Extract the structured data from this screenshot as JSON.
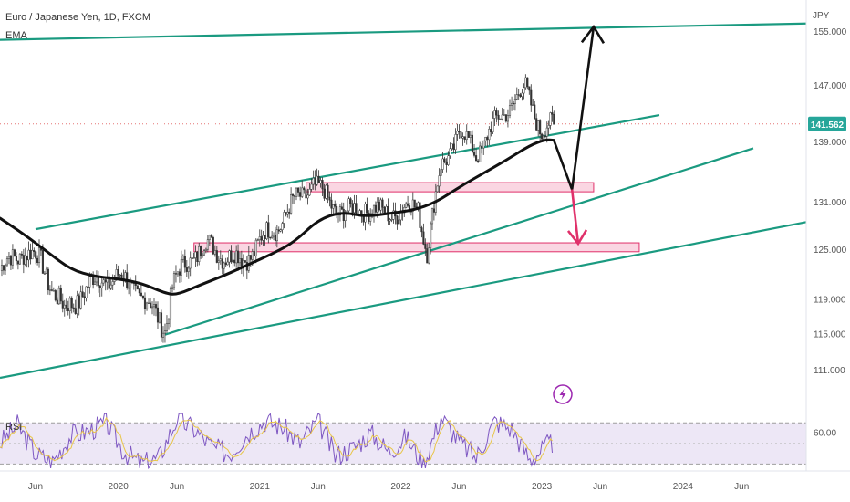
{
  "header": {
    "title": "Euro / Japanese Yen, 1D, FXCM",
    "indicator": "EMA",
    "currency": "JPY"
  },
  "rsi_panel": {
    "label": "RSI",
    "level_label": "60.00",
    "level_value": 60
  },
  "current_price": {
    "value": 141.562,
    "label": "141.562",
    "color": "#26a69a"
  },
  "colors": {
    "trendline": "#1a9a80",
    "ema": "#111111",
    "zone_fill": "#f8c8d8",
    "zone_stroke": "#e0306a",
    "arrow_up": "#111111",
    "arrow_down": "#e0306a",
    "candle": "#333333",
    "rsi_line": "#7e57c2",
    "rsi_ma": "#e8c547",
    "rsi_band": "#ede7f6",
    "price_line": "#e57373",
    "flash_icon": "#9c27b0"
  },
  "icons": {
    "flash": "lightning-bolt-icon"
  },
  "chart_data": {
    "type": "line",
    "title": "Euro / Japanese Yen, 1D, FXCM",
    "xlabel": "",
    "ylabel": "JPY",
    "y_scale": "log",
    "ylim": [
      108,
      158
    ],
    "xlim": [
      "2019-03-01",
      "2024-11-15"
    ],
    "grid": false,
    "y_ticks": [
      {
        "value": 111,
        "label": "111.000"
      },
      {
        "value": 115,
        "label": "115.000"
      },
      {
        "value": 119,
        "label": "119.000"
      },
      {
        "value": 125,
        "label": "125.000"
      },
      {
        "value": 131,
        "label": "131.000"
      },
      {
        "value": 139,
        "label": "139.000"
      },
      {
        "value": 147,
        "label": "147.000"
      },
      {
        "value": 155,
        "label": "155.000"
      }
    ],
    "x_ticks": [
      {
        "date": "2019-06-01",
        "label": "Jun"
      },
      {
        "date": "2020-01-01",
        "label": "2020"
      },
      {
        "date": "2020-06-01",
        "label": "Jun"
      },
      {
        "date": "2021-01-01",
        "label": "2021"
      },
      {
        "date": "2021-06-01",
        "label": "Jun"
      },
      {
        "date": "2022-01-01",
        "label": "2022"
      },
      {
        "date": "2022-06-01",
        "label": "Jun"
      },
      {
        "date": "2023-01-01",
        "label": "2023"
      },
      {
        "date": "2023-06-01",
        "label": "Jun"
      },
      {
        "date": "2024-01-01",
        "label": "2024"
      },
      {
        "date": "2024-06-01",
        "label": "Jun"
      }
    ],
    "series": [
      {
        "type": "line",
        "x": [
          "2019-03-01",
          "2019-05-01",
          "2019-06-15",
          "2019-08-15",
          "2019-10-01",
          "2019-11-15",
          "2020-01-01",
          "2020-02-15",
          "2020-03-15",
          "2020-05-01",
          "2020-05-20",
          "2020-07-01",
          "2020-08-15",
          "2020-10-01",
          "2020-11-15",
          "2021-01-01",
          "2021-02-15",
          "2021-04-01",
          "2021-05-20",
          "2021-07-01",
          "2021-08-15",
          "2021-10-01",
          "2021-11-15",
          "2022-01-01",
          "2022-02-15",
          "2022-03-10",
          "2022-04-15",
          "2022-06-01",
          "2022-07-15",
          "2022-09-01",
          "2022-10-15",
          "2022-11-20",
          "2023-01-01",
          "2023-02-01"
        ],
        "values": [
          122.5,
          125.0,
          123.5,
          117.5,
          120.0,
          121.5,
          121.5,
          120.5,
          118.5,
          116.0,
          120.5,
          124.0,
          125.5,
          124.5,
          123.5,
          126.0,
          128.0,
          131.0,
          133.5,
          131.0,
          129.5,
          130.5,
          129.5,
          130.0,
          130.5,
          125.0,
          135.5,
          140.5,
          137.5,
          141.5,
          144.5,
          146.5,
          140.5,
          141.5
        ]
      },
      {
        "name": "EMA",
        "type": "line",
        "x": [
          "2019-03-01",
          "2019-05-01",
          "2019-07-01",
          "2019-09-01",
          "2019-11-01",
          "2020-01-01",
          "2020-03-01",
          "2020-05-01",
          "2020-06-01",
          "2020-08-01",
          "2020-10-01",
          "2020-12-01",
          "2021-02-01",
          "2021-04-01",
          "2021-06-01",
          "2021-08-01",
          "2021-10-01",
          "2021-12-01",
          "2022-02-01",
          "2022-04-01",
          "2022-06-01",
          "2022-08-01",
          "2022-10-01",
          "2022-12-01",
          "2023-01-10",
          "2023-02-01"
        ],
        "values": [
          129.0,
          127.0,
          124.8,
          122.6,
          121.8,
          121.5,
          121.0,
          119.8,
          119.6,
          120.8,
          121.9,
          123.2,
          124.5,
          126.0,
          128.8,
          129.8,
          129.2,
          129.6,
          130.0,
          131.0,
          133.0,
          134.8,
          136.6,
          138.6,
          139.4,
          139.3
        ]
      }
    ],
    "trendlines": [
      {
        "x": [
          "2019-03-01",
          "2024-11-15"
        ],
        "values": [
          153.8,
          156.3
        ]
      },
      {
        "x": [
          "2019-06-01",
          "2023-11-01"
        ],
        "values": [
          127.6,
          142.8
        ]
      },
      {
        "x": [
          "2020-05-01",
          "2024-07-01"
        ],
        "values": [
          115.0,
          138.2
        ]
      },
      {
        "x": [
          "2019-03-01",
          "2024-11-15"
        ],
        "values": [
          110.2,
          128.5
        ]
      }
    ],
    "zones": [
      {
        "x": [
          "2021-05-01",
          "2023-05-15"
        ],
        "y": [
          132.4,
          133.6
        ]
      },
      {
        "x": [
          "2020-07-15",
          "2023-09-10"
        ],
        "y": [
          124.8,
          125.9
        ]
      }
    ],
    "projection_up": {
      "x": [
        "2023-02-01",
        "2023-03-20",
        "2023-05-15"
      ],
      "values": [
        139.3,
        132.7,
        155.8
      ]
    },
    "projection_down": {
      "x": [
        "2023-03-20",
        "2023-04-05"
      ],
      "values": [
        132.7,
        125.8
      ]
    },
    "rsi": {
      "ylim": [
        25,
        80
      ],
      "bands": [
        70,
        30
      ],
      "levels": [
        60
      ],
      "x": [
        "2019-03-01",
        "2019-04-15",
        "2019-06-01",
        "2019-07-15",
        "2019-09-01",
        "2019-10-15",
        "2019-12-01",
        "2020-01-15",
        "2020-03-01",
        "2020-04-15",
        "2020-06-01",
        "2020-07-15",
        "2020-09-01",
        "2020-10-15",
        "2020-12-01",
        "2021-01-15",
        "2021-03-01",
        "2021-04-15",
        "2021-06-01",
        "2021-07-15",
        "2021-09-01",
        "2021-10-15",
        "2021-12-01",
        "2022-01-15",
        "2022-03-01",
        "2022-04-15",
        "2022-06-01",
        "2022-07-15",
        "2022-09-01",
        "2022-10-15",
        "2022-12-01",
        "2023-01-15",
        "2023-02-01"
      ],
      "values": [
        50,
        68,
        40,
        32,
        58,
        62,
        70,
        42,
        30,
        36,
        74,
        64,
        46,
        40,
        60,
        72,
        66,
        50,
        72,
        38,
        46,
        60,
        42,
        56,
        30,
        76,
        52,
        36,
        72,
        64,
        34,
        48,
        50
      ]
    }
  }
}
